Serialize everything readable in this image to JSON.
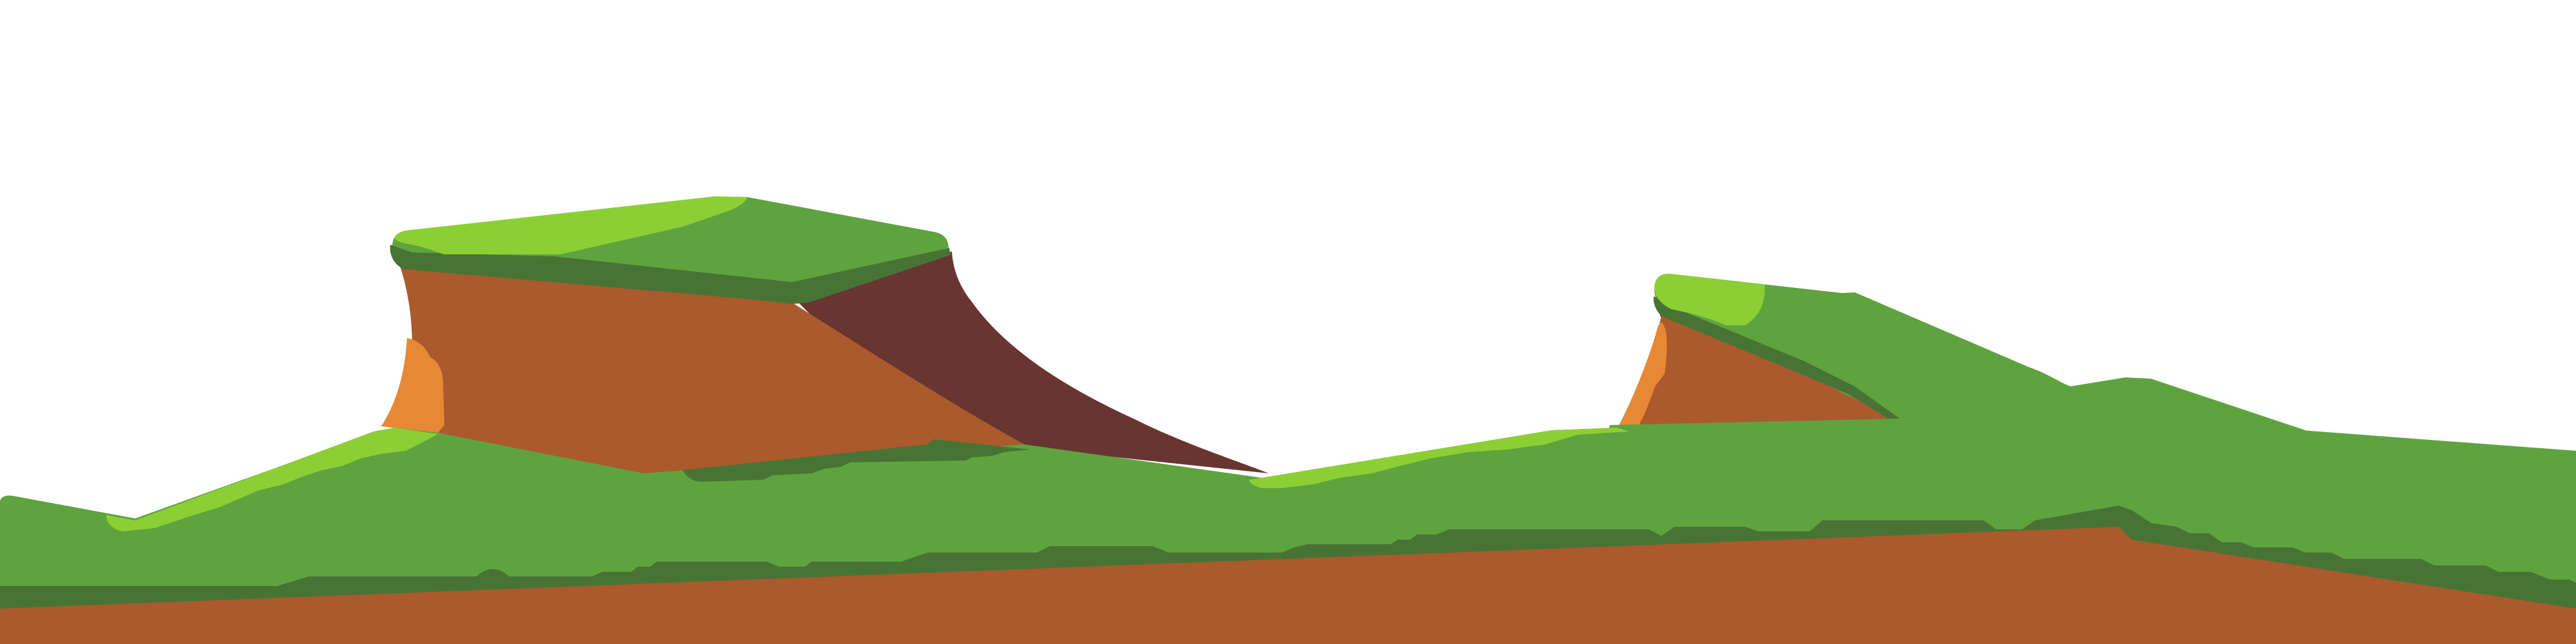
{
  "scene": {
    "colors": {
      "sky": "#ffffff",
      "grass": "#5fa33f",
      "grass_light": "#8ccf34",
      "grass_dark": "#477435",
      "dirt": "#ab5a2d",
      "dirt_shadow": "#683530",
      "dirt_highlight": "#e78837"
    }
  }
}
